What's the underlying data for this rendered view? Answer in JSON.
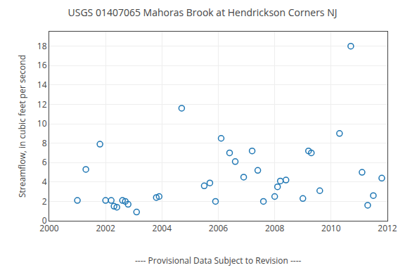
{
  "chart_data": {
    "type": "scatter",
    "title": "USGS 01407065 Mahoras Brook at Hendrickson Corners NJ",
    "ylabel": "Streamflow, in cubic feet per second",
    "annotations": [
      "---- Provisional Data Subject to Revision ----"
    ],
    "x": [
      2001.0,
      2001.3,
      2001.8,
      2002.0,
      2002.2,
      2002.3,
      2002.4,
      2002.6,
      2002.7,
      2002.8,
      2003.1,
      2003.8,
      2003.9,
      2004.7,
      2005.5,
      2005.7,
      2005.9,
      2006.1,
      2006.4,
      2006.6,
      2006.9,
      2007.2,
      2007.4,
      2007.6,
      2008.0,
      2008.1,
      2008.2,
      2008.4,
      2009.0,
      2009.2,
      2009.3,
      2009.6,
      2010.3,
      2010.7,
      2011.1,
      2011.3,
      2011.5,
      2011.8
    ],
    "values": [
      2.1,
      5.3,
      7.9,
      2.1,
      2.1,
      1.5,
      1.4,
      2.1,
      2.0,
      1.7,
      0.9,
      2.4,
      2.5,
      11.6,
      3.6,
      3.9,
      2.0,
      8.5,
      7.0,
      6.1,
      4.5,
      7.2,
      5.2,
      2.0,
      2.5,
      3.5,
      4.1,
      4.2,
      2.3,
      7.2,
      7.0,
      3.1,
      9.0,
      18.0,
      5.0,
      1.6,
      2.6,
      4.4
    ],
    "marker": "circle-open",
    "xlim": [
      2000,
      2012
    ],
    "ylim": [
      0,
      19.5
    ],
    "xticks": [
      2000,
      2002,
      2004,
      2006,
      2008,
      2010,
      2012
    ],
    "yticks": [
      0,
      2,
      4,
      6,
      8,
      10,
      12,
      14,
      16,
      18
    ],
    "grid": true
  }
}
